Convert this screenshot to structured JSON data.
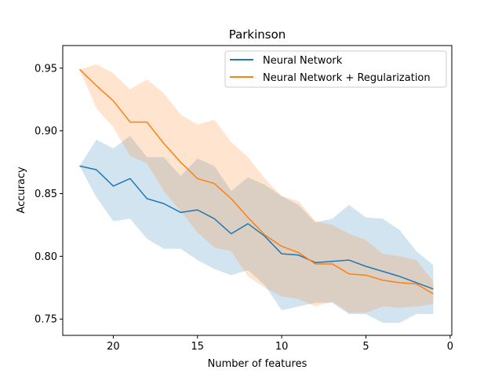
{
  "chart_data": {
    "type": "line",
    "title": "Parkinson",
    "xlabel": "Number of features",
    "ylabel": "Accuracy",
    "xlim": [
      23,
      -0.1
    ],
    "ylim": [
      0.737,
      0.968
    ],
    "x_inverted": true,
    "xticks": [
      20,
      15,
      10,
      5,
      0
    ],
    "yticks": [
      0.75,
      0.8,
      0.85,
      0.9,
      0.95
    ],
    "ytick_labels": [
      "0.75",
      "0.80",
      "0.85",
      "0.90",
      "0.95"
    ],
    "grid": false,
    "legend_position": "top-right",
    "x": [
      22,
      21,
      20,
      19,
      18,
      17,
      16,
      15,
      14,
      13,
      12,
      11,
      10,
      9,
      8,
      7,
      6,
      5,
      4,
      3,
      2,
      1
    ],
    "series": [
      {
        "name": "Neural Network",
        "color": "#1f77b4",
        "values": [
          0.872,
          0.869,
          0.856,
          0.862,
          0.846,
          0.842,
          0.835,
          0.837,
          0.83,
          0.818,
          0.826,
          0.816,
          0.802,
          0.801,
          0.795,
          0.796,
          0.797,
          0.792,
          0.788,
          0.784,
          0.779,
          0.774
        ],
        "upper": [
          0.872,
          0.893,
          0.886,
          0.896,
          0.879,
          0.879,
          0.864,
          0.878,
          0.872,
          0.852,
          0.863,
          0.857,
          0.848,
          0.841,
          0.827,
          0.83,
          0.841,
          0.831,
          0.83,
          0.821,
          0.804,
          0.793
        ],
        "lower": [
          0.872,
          0.847,
          0.828,
          0.83,
          0.814,
          0.806,
          0.806,
          0.797,
          0.79,
          0.785,
          0.789,
          0.777,
          0.757,
          0.76,
          0.763,
          0.763,
          0.754,
          0.754,
          0.747,
          0.747,
          0.754,
          0.754
        ]
      },
      {
        "name": "Neural Network + Regularization",
        "color": "#ff7f0e",
        "values": [
          0.949,
          0.936,
          0.924,
          0.907,
          0.907,
          0.89,
          0.875,
          0.862,
          0.858,
          0.846,
          0.831,
          0.817,
          0.808,
          0.803,
          0.794,
          0.794,
          0.786,
          0.785,
          0.781,
          0.779,
          0.778,
          0.77
        ],
        "upper": [
          0.949,
          0.953,
          0.946,
          0.933,
          0.941,
          0.93,
          0.913,
          0.905,
          0.909,
          0.891,
          0.879,
          0.862,
          0.848,
          0.844,
          0.828,
          0.825,
          0.818,
          0.813,
          0.802,
          0.8,
          0.797,
          0.78
        ],
        "lower": [
          0.949,
          0.918,
          0.903,
          0.88,
          0.874,
          0.852,
          0.836,
          0.819,
          0.807,
          0.804,
          0.784,
          0.775,
          0.768,
          0.766,
          0.76,
          0.764,
          0.755,
          0.755,
          0.76,
          0.759,
          0.76,
          0.762
        ]
      }
    ]
  }
}
